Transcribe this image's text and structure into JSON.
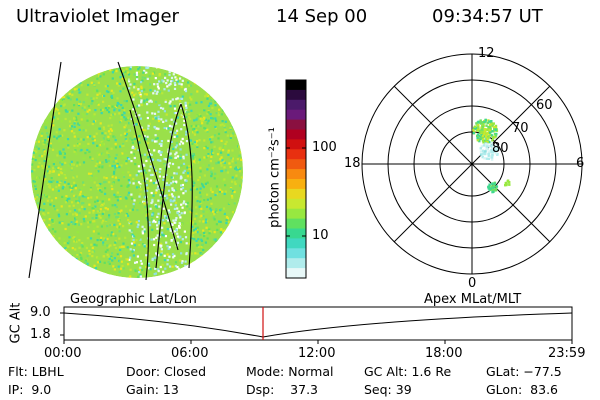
{
  "header": {
    "instrument": "Ultraviolet Imager",
    "date": "14 Sep 00",
    "time": "09:34:57 UT"
  },
  "colorbar": {
    "unit_label": "photon cm⁻²s⁻¹",
    "ticks": [
      "100",
      "10"
    ],
    "colors": [
      "#000000",
      "#2b0a3d",
      "#4b1a6a",
      "#6a1a7a",
      "#8a1040",
      "#b00020",
      "#d01010",
      "#e83010",
      "#f05a10",
      "#f88a10",
      "#f8b010",
      "#e8d820",
      "#c8e830",
      "#98e840",
      "#60e060",
      "#38d890",
      "#40d8c0",
      "#70e0e0",
      "#b0ecec",
      "#e8f8f8"
    ]
  },
  "polar": {
    "top_label": "12",
    "bottom_label": "0",
    "left_label": "18",
    "right_label": "6",
    "ring_labels": [
      "60",
      "70",
      "80"
    ]
  },
  "timeline": {
    "y_title": "GC Alt",
    "y_ticks": [
      "9.0",
      "1.8"
    ],
    "left_caption": "Geographic Lat/Lon",
    "right_caption": "Apex MLat/MLT",
    "x_ticks": [
      "00:00",
      "06:00",
      "12:00",
      "18:00",
      "23:59"
    ]
  },
  "info": {
    "flt": "Flt: LBHL",
    "ip": "IP:  9.0",
    "door": "Door: Closed",
    "gain": "Gain: 13",
    "mode": "Mode: Normal",
    "dsp": "Dsp:    37.3",
    "gcalt": "GC Alt: 1.6 Re",
    "seq": "Seq: 39",
    "glat": "GLat: −77.5",
    "glon": "GLon:  83.6"
  }
}
